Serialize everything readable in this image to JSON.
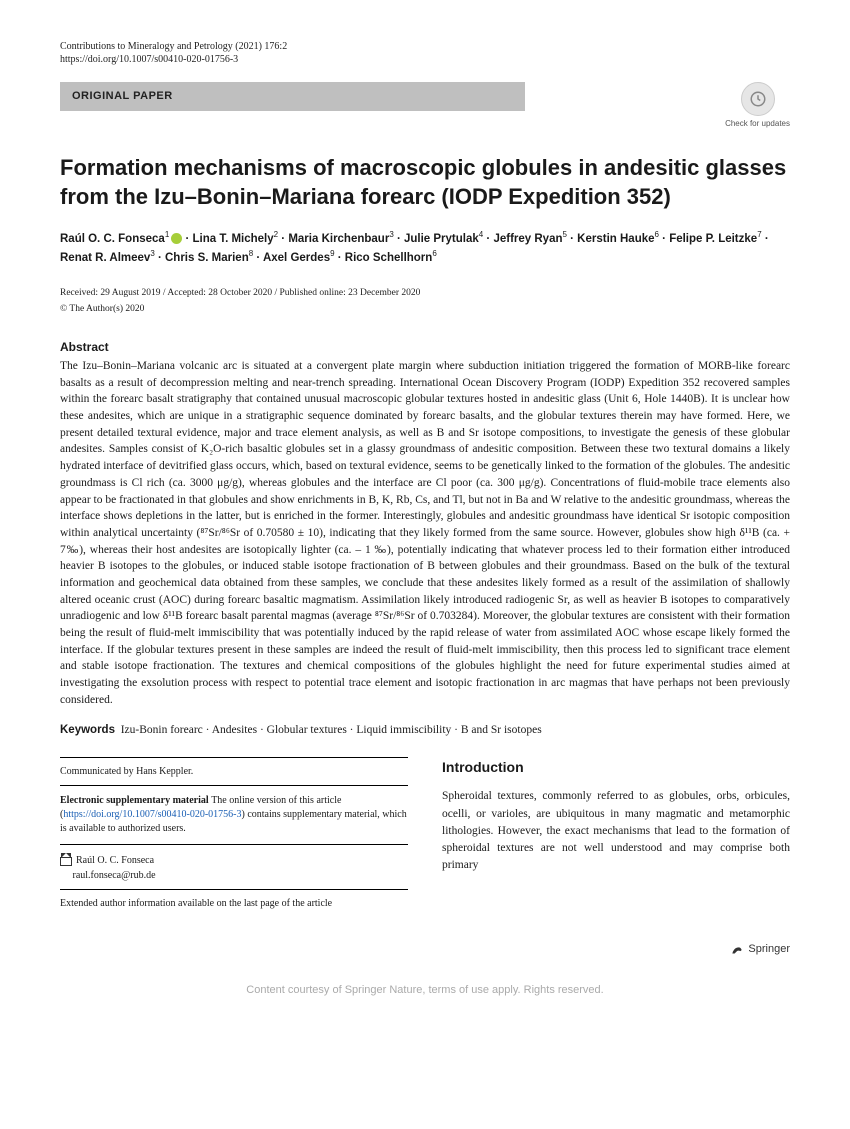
{
  "journal": "Contributions to Mineralogy and Petrology (2021) 176:2",
  "doi": "https://doi.org/10.1007/s00410-020-01756-3",
  "badge": "ORIGINAL PAPER",
  "check_updates": "Check for updates",
  "title": "Formation mechanisms of macroscopic globules in andesitic glasses from the Izu–Bonin–Mariana forearc (IODP Expedition 352)",
  "authors_html": "Raúl O. C. Fonseca<sup>1</sup><span class=\"orcid\"></span> · Lina T. Michely<sup>2</sup> · Maria Kirchenbaur<sup>3</sup> · Julie Prytulak<sup>4</sup> · Jeffrey Ryan<sup>5</sup> · Kerstin Hauke<sup>6</sup> · Felipe P. Leitzke<sup>7</sup> · Renat R. Almeev<sup>3</sup> · Chris S. Marien<sup>8</sup> · Axel Gerdes<sup>9</sup> · Rico Schellhorn<sup>6</sup>",
  "dates": "Received: 29 August 2019 / Accepted: 28 October 2020 / Published online: 23 December 2020",
  "copyright": "© The Author(s) 2020",
  "abstract_head": "Abstract",
  "abstract_body": "The Izu–Bonin–Mariana volcanic arc is situated at a convergent plate margin where subduction initiation triggered the formation of MORB-like forearc basalts as a result of decompression melting and near-trench spreading. International Ocean Discovery Program (IODP) Expedition 352 recovered samples within the forearc basalt stratigraphy that contained unusual macroscopic globular textures hosted in andesitic glass (Unit 6, Hole 1440B). It is unclear how these andesites, which are unique in a stratigraphic sequence dominated by forearc basalts, and the globular textures therein may have formed. Here, we present detailed textural evidence, major and trace element analysis, as well as B and Sr isotope compositions, to investigate the genesis of these globular andesites. Samples consist of K₂O-rich basaltic globules set in a glassy groundmass of andesitic composition. Between these two textural domains a likely hydrated interface of devitrified glass occurs, which, based on textural evidence, seems to be genetically linked to the formation of the globules. The andesitic groundmass is Cl rich (ca. 3000 μg/g), whereas globules and the interface are Cl poor (ca. 300 μg/g). Concentrations of fluid-mobile trace elements also appear to be fractionated in that globules and show enrichments in B, K, Rb, Cs, and Tl, but not in Ba and W relative to the andesitic groundmass, whereas the interface shows depletions in the latter, but is enriched in the former. Interestingly, globules and andesitic groundmass have identical Sr isotopic composition within analytical uncertainty (⁸⁷Sr/⁸⁶Sr of 0.70580 ± 10), indicating that they likely formed from the same source. However, globules show high δ¹¹B (ca. + 7‰), whereas their host andesites are isotopically lighter (ca. – 1 ‰), potentially indicating that whatever process led to their formation either introduced heavier B isotopes to the globules, or induced stable isotope fractionation of B between globules and their groundmass. Based on the bulk of the textural information and geochemical data obtained from these samples, we conclude that these andesites likely formed as a result of the assimilation of shallowly altered oceanic crust (AOC) during forearc basaltic magmatism. Assimilation likely introduced radiogenic Sr, as well as heavier B isotopes to comparatively unradiogenic and low δ¹¹B forearc basalt parental magmas (average ⁸⁷Sr/⁸⁶Sr of 0.703284). Moreover, the globular textures are consistent with their formation being the result of fluid-melt immiscibility that was potentially induced by the rapid release of water from assimilated AOC whose escape likely formed the interface. If the globular textures present in these samples are indeed the result of fluid-melt immiscibility, then this process led to significant trace element and stable isotope fractionation. The textures and chemical compositions of the globules highlight the need for future experimental studies aimed at investigating the exsolution process with respect to potential trace element and isotopic fractionation in arc magmas that have perhaps not been previously considered.",
  "keywords_label": "Keywords",
  "keywords_text": "Izu-Bonin forearc · Andesites · Globular textures · Liquid immiscibility · B and Sr isotopes",
  "communicated": "Communicated by Hans Keppler.",
  "esm_label": "Electronic supplementary material",
  "esm_text_pre": "The online version of this article (",
  "esm_link": "https://doi.org/10.1007/s00410-020-01756-3",
  "esm_text_post": ") contains supplementary material, which is available to authorized users.",
  "corr_name": "Raúl O. C. Fonseca",
  "corr_email": "raul.fonseca@rub.de",
  "extended": "Extended author information available on the last page of the article",
  "intro_head": "Introduction",
  "intro_body": "Spheroidal textures, commonly referred to as globules, orbs, orbicules, ocelli, or varioles, are ubiquitous in many magmatic and metamorphic lithologies. However, the exact mechanisms that lead to the formation of spheroidal textures are not well understood and may comprise both primary",
  "publisher": "Springer",
  "footer": "Content courtesy of Springer Nature, terms of use apply. Rights reserved."
}
